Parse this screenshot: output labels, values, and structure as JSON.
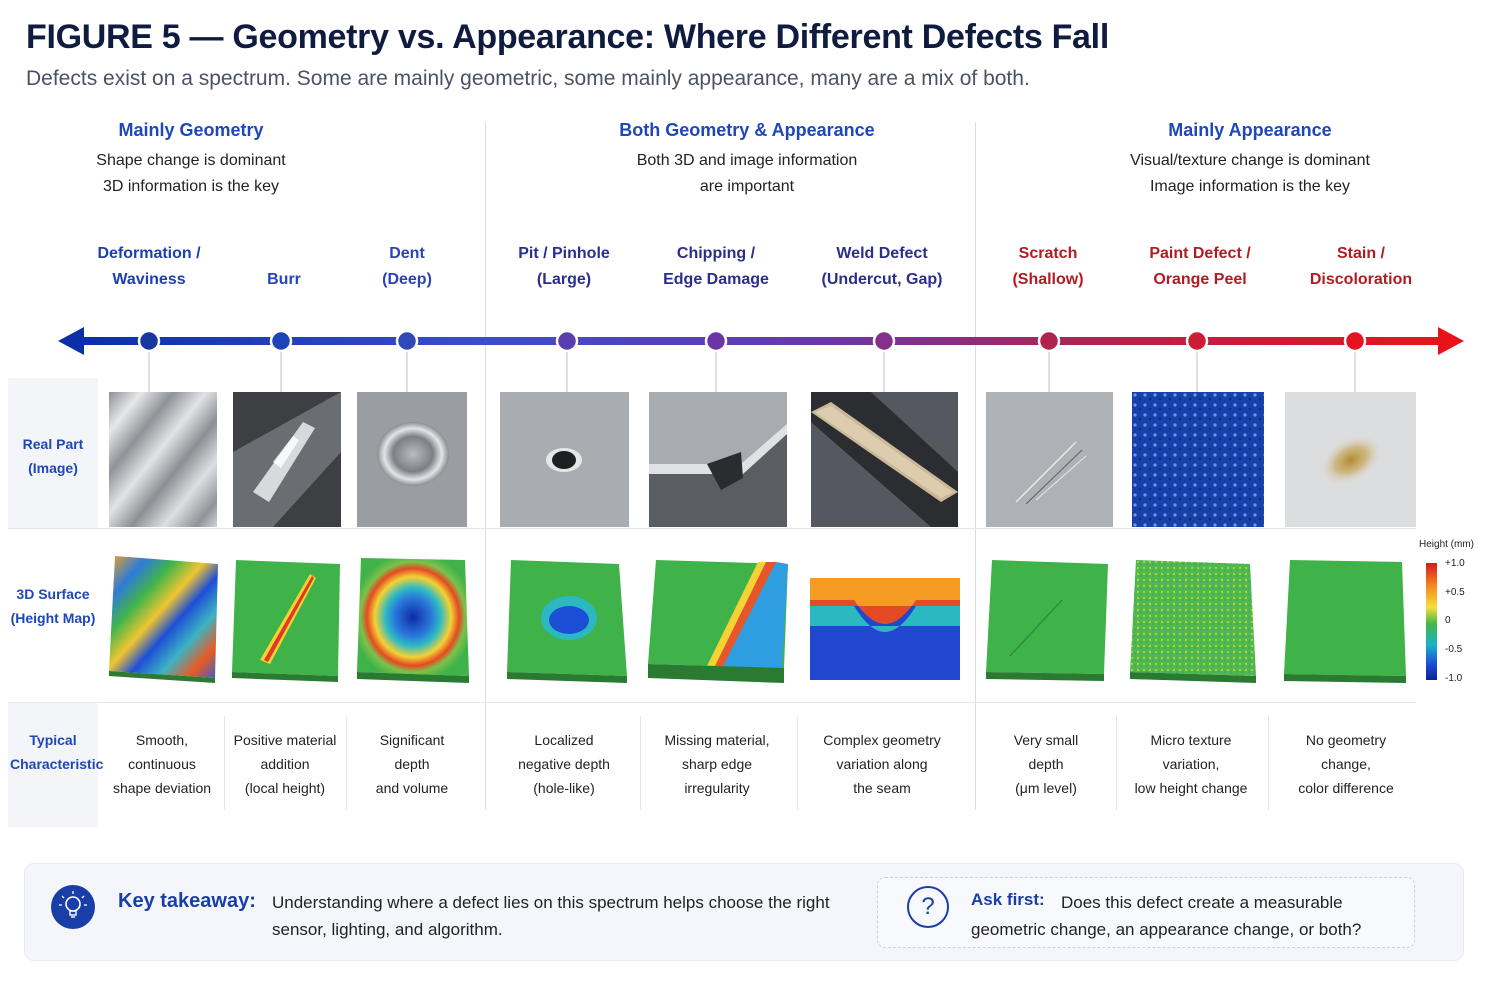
{
  "title": "FIGURE 5 — Geometry vs. Appearance: Where Different Defects Fall",
  "subtitle": "Defects exist on a spectrum. Some are mainly geometric, some mainly appearance, many are a mix of both.",
  "groups": [
    {
      "heading": "Mainly Geometry",
      "line1": "Shape change is dominant",
      "line2": "3D information is the key"
    },
    {
      "heading": "Both Geometry & Appearance",
      "line1": "Both 3D and image information",
      "line2": "are important"
    },
    {
      "heading": "Mainly Appearance",
      "line1": "Visual/texture change is dominant",
      "line2": "Image information is the key"
    }
  ],
  "defects": [
    {
      "line1": "Deformation /",
      "line2": "Waviness",
      "color": "#1e3fae",
      "char": [
        "Smooth,",
        "continuous",
        "shape deviation"
      ]
    },
    {
      "line1": "",
      "line2": "Burr",
      "color": "#2346b8",
      "char": [
        "Positive material",
        "addition",
        "(local height)"
      ]
    },
    {
      "line1": "Dent",
      "line2": "(Deep)",
      "color": "#2b44b0",
      "char": [
        "Significant",
        "depth",
        "and volume"
      ]
    },
    {
      "line1": "Pit / Pinhole",
      "line2": "(Large)",
      "color": "#2a2f8c",
      "char": [
        "Localized",
        "negative depth",
        "(hole-like)"
      ]
    },
    {
      "line1": "Chipping /",
      "line2": "Edge Damage",
      "color": "#2a2f8c",
      "char": [
        "Missing material,",
        "sharp edge",
        "irregularity"
      ]
    },
    {
      "line1": "Weld Defect",
      "line2": "(Undercut, Gap)",
      "color": "#2a2f8c",
      "char": [
        "Complex geometry",
        "variation along",
        "the seam"
      ]
    },
    {
      "line1": "Scratch",
      "line2": "(Shallow)",
      "color": "#b01c22",
      "char": [
        "Very small",
        "depth",
        "(μm level)"
      ]
    },
    {
      "line1": "Paint Defect /",
      "line2": "Orange Peel",
      "color": "#b01c22",
      "char": [
        "Micro texture",
        "variation,",
        "low height change"
      ]
    },
    {
      "line1": "Stain /",
      "line2": "Discoloration",
      "color": "#b01c22",
      "char": [
        "No geometry",
        "change,",
        "color difference"
      ]
    }
  ],
  "rows": {
    "real_part": {
      "line1": "Real Part",
      "line2": "(Image)"
    },
    "surface": {
      "line1": "3D Surface",
      "line2": "(Height Map)"
    },
    "characteristic": {
      "line1": "Typical",
      "line2": "Characteristic"
    }
  },
  "legend": {
    "title": "Height (mm)",
    "ticks": [
      "+1.0",
      "+0.5",
      "0",
      "-0.5",
      "-1.0"
    ]
  },
  "colors": {
    "geometry": "#0b2fa8",
    "mixed": "#6a36a8",
    "appearance": "#e8131a"
  },
  "footer": {
    "takeaway_title": "Key takeaway:",
    "takeaway_text": "Understanding where a defect lies on this spectrum helps choose the right sensor, lighting, and algorithm.",
    "ask_title": "Ask first:",
    "ask_text": "Does this defect create a measurable geometric change, an appearance change, or both?",
    "takeaway_icon": "lightbulb-icon",
    "ask_icon": "question-circle-icon"
  }
}
